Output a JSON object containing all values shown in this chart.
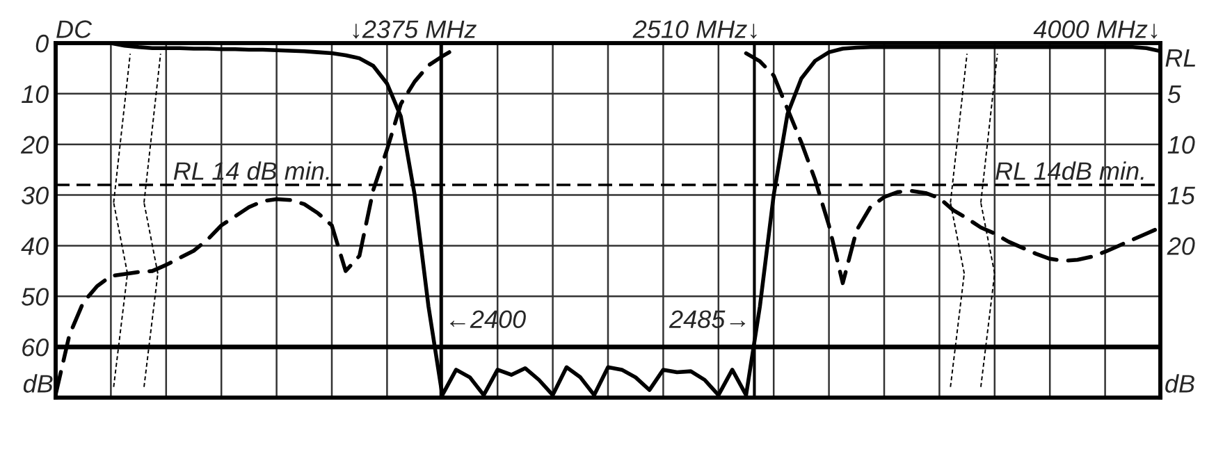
{
  "chart_data": {
    "type": "line",
    "categories": [
      null,
      null,
      null,
      null,
      null,
      null,
      null,
      null,
      null,
      null,
      null,
      null,
      null,
      null,
      null,
      null,
      null,
      null,
      null,
      null,
      null,
      null,
      null,
      null,
      null,
      null,
      null,
      null,
      null,
      null,
      null,
      null,
      null,
      null,
      null,
      null,
      null,
      null,
      null,
      null,
      null,
      null,
      null,
      null,
      null,
      null,
      null,
      null,
      null,
      null,
      null,
      null,
      null,
      null,
      null,
      null,
      null,
      null,
      null,
      null,
      null,
      null,
      null,
      null,
      null,
      null,
      null,
      null,
      null,
      null,
      null,
      null,
      null,
      null,
      null,
      null,
      null,
      null,
      null,
      null,
      null
    ],
    "series": [
      {
        "color": "#000000",
        "line_style": "solid",
        "values": [
          0,
          0,
          0,
          0,
          0,
          0.5,
          0.8,
          1,
          1,
          1,
          1.1,
          1.1,
          1.2,
          1.2,
          1.3,
          1.3,
          1.4,
          1.5,
          1.6,
          1.8,
          2,
          2.4,
          3,
          4.5,
          8,
          14.5,
          30,
          52,
          69.5,
          64.5,
          66,
          69.5,
          64.5,
          65.5,
          64.2,
          66.5,
          69.5,
          64,
          66,
          69.5,
          64,
          64.5,
          66,
          68.5,
          64.5,
          65,
          64.8,
          66.5,
          69.5,
          64.5,
          69.5,
          52,
          30,
          14,
          7,
          3.5,
          1.8,
          1.1,
          0.9,
          0.8,
          0.8,
          0.8,
          0.8,
          0.8,
          0.8,
          0.8,
          0.8,
          0.8,
          0.8,
          0.8,
          0.8,
          0.8,
          0.8,
          0.8,
          0.8,
          0.8,
          0.8,
          0.8,
          0.8,
          1,
          1.6
        ]
      },
      {
        "color": "#000000",
        "line_style": "dashed",
        "axis": "y2",
        "values": [
          34.7,
          28.8,
          25.6,
          24,
          23,
          22.8,
          22.6,
          22.5,
          21.9,
          21.2,
          20.5,
          19.4,
          18,
          17.1,
          16.2,
          15.6,
          15.4,
          15.5,
          15.9,
          16.8,
          18,
          22.5,
          21,
          14.5,
          10.5,
          6,
          3.8,
          2.2,
          1.3,
          0.5,
          null,
          null,
          null,
          null,
          null,
          null,
          null,
          null,
          null,
          null,
          null,
          null,
          null,
          null,
          null,
          null,
          null,
          null,
          null,
          null,
          1,
          1.8,
          3.2,
          6.5,
          9.8,
          13.5,
          18,
          23.7,
          18.5,
          16.2,
          15.2,
          14.7,
          14.6,
          14.8,
          15.3,
          16.5,
          17.3,
          18.2,
          18.8,
          19.6,
          20.2,
          20.8,
          21.3,
          21.5,
          21.4,
          21.1,
          20.6,
          20,
          19.4,
          18.8,
          18.2
        ]
      }
    ],
    "ylim": [
      70,
      0
    ],
    "yticks": [
      0,
      10,
      20,
      30,
      40,
      50,
      60
    ],
    "y2lim": [
      35,
      0
    ],
    "y2ticks": [
      5,
      10,
      15,
      20
    ],
    "ylabel": "dB",
    "y2label": "RL",
    "ref_lines": [
      {
        "axis": "y",
        "value": 60,
        "line_style": "solid",
        "color": "#000000"
      },
      {
        "axis": "y2",
        "value": 14,
        "label": "RL 14 dB min.",
        "line_style": "dashed",
        "color": "#000000"
      }
    ],
    "annotations": [
      "DC",
      "↓2375 MHz",
      "2510 MHz↓",
      "4000 MHz↓",
      "RL 14dB min.",
      "dB",
      "←2400",
      "2485→"
    ],
    "grid": true,
    "legend": false,
    "marker": "none"
  }
}
